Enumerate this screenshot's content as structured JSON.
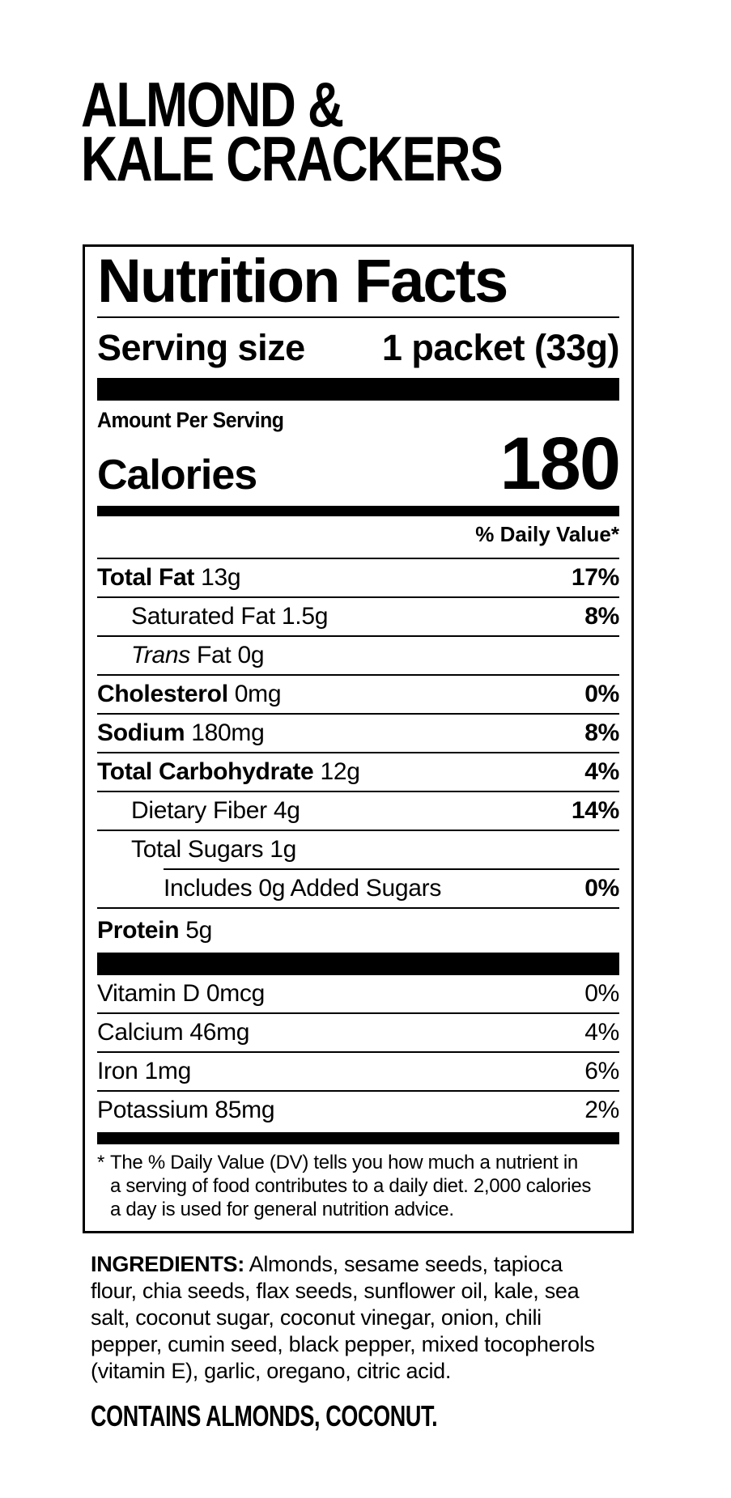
{
  "product": {
    "title_lines": [
      "ALMOND &",
      "KALE CRACKERS"
    ]
  },
  "panel": {
    "heading": "Nutrition Facts",
    "serving": {
      "label": "Serving size",
      "value": "1 packet (33g)"
    },
    "amount_per_serving": "Amount Per Serving",
    "calories": {
      "label": "Calories",
      "value": "180"
    },
    "daily_value_header": "% Daily Value*",
    "nutrients": [
      {
        "name": "Total Fat",
        "amount": "13g",
        "dv": "17%"
      },
      {
        "name": "Saturated Fat",
        "amount": "1.5g",
        "dv": "8%"
      },
      {
        "name": "Trans",
        "amount": "Fat 0g",
        "dv": ""
      },
      {
        "name": "Cholesterol",
        "amount": "0mg",
        "dv": "0%"
      },
      {
        "name": "Sodium",
        "amount": "180mg",
        "dv": "8%"
      },
      {
        "name": "Total Carbohydrate",
        "amount": "12g",
        "dv": "4%"
      },
      {
        "name": "Dietary Fiber",
        "amount": "4g",
        "dv": "14%"
      },
      {
        "name": "Total Sugars",
        "amount": "1g",
        "dv": ""
      },
      {
        "name": "Includes 0g Added Sugars",
        "amount": "",
        "dv": "0%"
      },
      {
        "name": "Protein",
        "amount": "5g",
        "dv": ""
      }
    ],
    "micronutrients": [
      {
        "name": "Vitamin D",
        "amount": "0mcg",
        "dv": "0%"
      },
      {
        "name": "Calcium",
        "amount": "46mg",
        "dv": "4%"
      },
      {
        "name": "Iron",
        "amount": "1mg",
        "dv": "6%"
      },
      {
        "name": "Potassium",
        "amount": "85mg",
        "dv": "2%"
      }
    ],
    "footnote_asterisk": "*",
    "footnote_lines": [
      "The % Daily Value (DV) tells you how much a nutrient in",
      "a serving of food contributes to a daily diet. 2,000 calories",
      "a day is used for general nutrition advice."
    ]
  },
  "ingredients": {
    "label": "INGREDIENTS:",
    "text_lines": [
      "Almonds, sesame seeds, tapioca",
      "flour, chia seeds, flax seeds, sunflower oil, kale, sea",
      "salt, coconut sugar, coconut vinegar, onion, chili",
      "pepper, cumin seed, black pepper, mixed tocopherols",
      "(vitamin E), garlic, oregano, citric acid."
    ]
  },
  "allergen_statement": "CONTAINS ALMONDS, COCONUT.",
  "colors": {
    "ink": "#000000",
    "background": "#ffffff"
  }
}
